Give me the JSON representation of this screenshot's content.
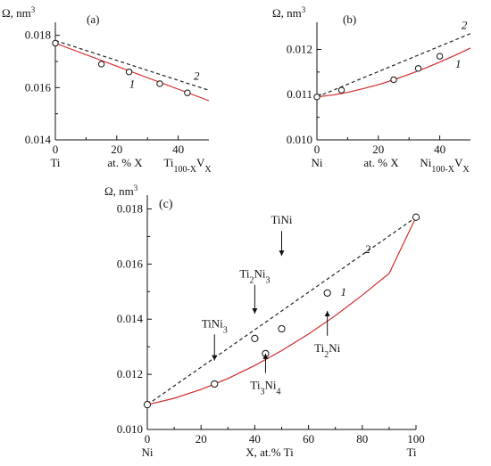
{
  "colors": {
    "series1": "#d22b2b",
    "series2": "#222222",
    "axis": "#111111"
  },
  "chart_data": [
    {
      "type": "scatter",
      "panel_label": "(a)",
      "ylabel": "Ω, nm³",
      "xlim": [
        0,
        50
      ],
      "ylim": [
        0.014,
        0.0185
      ],
      "yticks": [
        0.014,
        0.016,
        0.018
      ],
      "ytick_labels": [
        "0.014",
        "0.016",
        "0.018"
      ],
      "xticks": [
        0,
        20,
        40
      ],
      "xtick_labels": [
        "0",
        "20",
        "40"
      ],
      "x_left_label": "Ti",
      "x_mid_label": "at. % X",
      "x_right_label": "Ti100-XVX",
      "series": [
        {
          "name": "1",
          "style": "solid",
          "x": [
            0,
            50
          ],
          "y": [
            0.0177,
            0.0155
          ]
        },
        {
          "name": "2",
          "style": "dashed",
          "x": [
            0,
            50
          ],
          "y": [
            0.0178,
            0.0159
          ]
        },
        {
          "style": "markers",
          "x": [
            0,
            15,
            24,
            34,
            43
          ],
          "y": [
            0.0177,
            0.0169,
            0.0166,
            0.01615,
            0.0158
          ]
        }
      ]
    },
    {
      "type": "scatter",
      "panel_label": "(b)",
      "ylabel": "Ω, nm³",
      "xlim": [
        0,
        50
      ],
      "ylim": [
        0.01,
        0.0126
      ],
      "yticks": [
        0.01,
        0.011,
        0.012
      ],
      "ytick_labels": [
        "0.010",
        "0.011",
        "0.012"
      ],
      "xticks": [
        0,
        20,
        40
      ],
      "xtick_labels": [
        "0",
        "20",
        "40"
      ],
      "x_left_label": "Ni",
      "x_mid_label": "at. % X",
      "x_right_label": "Ni100-XVX",
      "series": [
        {
          "name": "1",
          "style": "solid",
          "x": [
            0,
            5,
            10,
            15,
            20,
            25,
            30,
            35,
            40,
            45,
            50
          ],
          "y": [
            0.01095,
            0.01099,
            0.01105,
            0.01113,
            0.01122,
            0.01133,
            0.01145,
            0.01158,
            0.01172,
            0.01187,
            0.01203
          ]
        },
        {
          "name": "2",
          "style": "dashed",
          "x": [
            0,
            50
          ],
          "y": [
            0.01095,
            0.01235
          ]
        },
        {
          "style": "markers",
          "x": [
            0,
            8,
            25,
            33,
            40
          ],
          "y": [
            0.01095,
            0.0111,
            0.01133,
            0.01158,
            0.01185
          ]
        }
      ]
    },
    {
      "type": "scatter",
      "panel_label": "(c)",
      "ylabel": "Ω, nm³",
      "xlabel": "X, at.% Ti",
      "xlim": [
        0,
        100
      ],
      "ylim": [
        0.01,
        0.0185
      ],
      "yticks": [
        0.01,
        0.012,
        0.014,
        0.016,
        0.018
      ],
      "ytick_labels": [
        "0.010",
        "0.012",
        "0.014",
        "0.016",
        "0.018"
      ],
      "xticks": [
        0,
        20,
        40,
        60,
        80,
        100
      ],
      "xtick_labels": [
        "0",
        "20",
        "40",
        "60",
        "80",
        "100"
      ],
      "x_left_label": "Ni",
      "x_right_label": "Ti",
      "series": [
        {
          "name": "1",
          "style": "solid",
          "x": [
            0,
            10,
            20,
            30,
            40,
            50,
            60,
            70,
            80,
            90,
            100
          ],
          "y": [
            0.0109,
            0.01113,
            0.01145,
            0.01185,
            0.01232,
            0.01286,
            0.01346,
            0.01413,
            0.01487,
            0.01566,
            0.0177
          ]
        },
        {
          "name": "2",
          "style": "dashed",
          "x": [
            0,
            100
          ],
          "y": [
            0.0109,
            0.0177
          ]
        },
        {
          "style": "markers",
          "x": [
            0,
            25,
            40,
            44,
            50,
            67,
            100
          ],
          "y": [
            0.0109,
            0.01165,
            0.0133,
            0.01275,
            0.01365,
            0.01495,
            0.0177
          ]
        }
      ],
      "annotations": [
        {
          "text": "TiNi",
          "x": 50,
          "y": 0.0167,
          "arrow_from_y": 0.0172,
          "arrow_to_y": 0.0163,
          "label_pos": "above"
        },
        {
          "text": "Ti2Ni3",
          "x": 40,
          "y": 0.0148,
          "arrow_from_y": 0.01525,
          "arrow_to_y": 0.0142,
          "label_pos": "above"
        },
        {
          "text": "TiNi3",
          "x": 25,
          "y": 0.0136,
          "arrow_from_y": 0.01345,
          "arrow_to_y": 0.0125,
          "label_pos": "above"
        },
        {
          "text": "Ti2Ni",
          "x": 67,
          "y": 0.0137,
          "arrow_from_y": 0.0134,
          "arrow_to_y": 0.0143,
          "label_pos": "below"
        },
        {
          "text": "Ti3Ni4",
          "x": 44,
          "y": 0.0116,
          "arrow_from_y": 0.01205,
          "arrow_to_y": 0.01275,
          "label_pos": "below"
        }
      ]
    }
  ]
}
